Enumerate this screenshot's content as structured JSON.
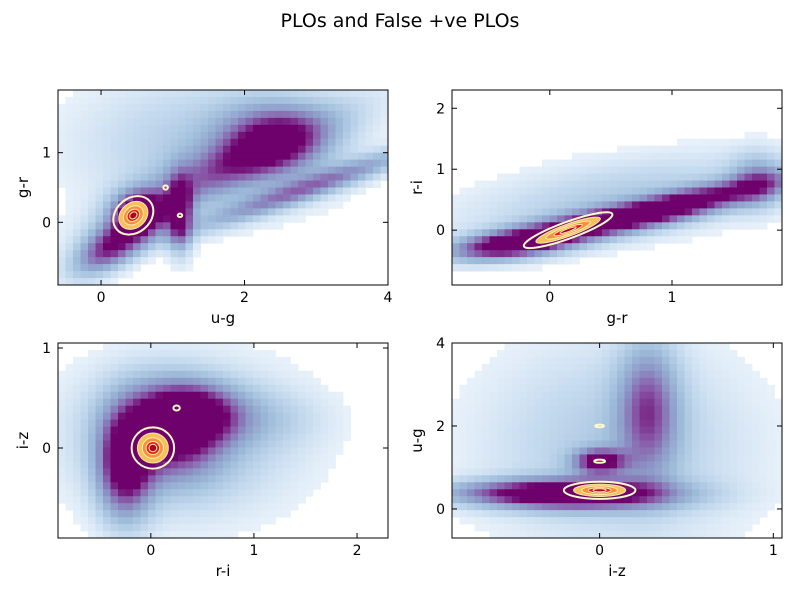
{
  "figure": {
    "title": "PLOs and False +ve PLOs"
  },
  "chart_data": [
    {
      "type": "heatmap",
      "xlabel": "u-g",
      "ylabel": "g-r",
      "xlim": [
        -0.6,
        4.0
      ],
      "ylim": [
        -0.9,
        1.9
      ],
      "xticks": [
        "0",
        "2",
        "4"
      ],
      "xtick_values": [
        0,
        2,
        4
      ],
      "yticks": [
        "0",
        "1"
      ],
      "ytick_values": [
        0,
        1
      ],
      "background_blobs": [
        {
          "cx": 0.2,
          "cy": -0.3,
          "rx": 0.45,
          "ry": 0.2,
          "rot": 35,
          "level": 0.95
        },
        {
          "cx": 0.55,
          "cy": 0.15,
          "rx": 0.25,
          "ry": 0.2,
          "level": 0.9
        },
        {
          "cx": 1.1,
          "cy": 0.1,
          "rx": 0.12,
          "ry": 0.35,
          "level": 0.85
        },
        {
          "cx": 1.8,
          "cy": 0.8,
          "rx": 1.2,
          "ry": 0.25,
          "rot": 25,
          "level": 0.55
        },
        {
          "cx": 2.4,
          "cy": 1.2,
          "rx": 0.5,
          "ry": 0.35,
          "level": 0.7
        },
        {
          "cx": 2.9,
          "cy": 0.5,
          "rx": 1.2,
          "ry": 0.12,
          "rot": 20,
          "level": 0.6
        },
        {
          "cx": 1.5,
          "cy": 1.1,
          "rx": 1.3,
          "ry": 0.7,
          "level": 0.3
        }
      ],
      "foreground_blobs": [
        {
          "cx": 0.45,
          "cy": 0.1,
          "rx": 0.22,
          "ry": 0.18,
          "rot": 40,
          "level": 1.0
        },
        {
          "cx": 0.9,
          "cy": 0.5,
          "rx": 0.05,
          "ry": 0.05,
          "level": 0.4
        },
        {
          "cx": 1.1,
          "cy": 0.1,
          "rx": 0.05,
          "ry": 0.04,
          "level": 0.35
        }
      ]
    },
    {
      "type": "heatmap",
      "xlabel": "g-r",
      "ylabel": "r-i",
      "xlim": [
        -0.8,
        1.9
      ],
      "ylim": [
        -0.9,
        2.3
      ],
      "xticks": [
        "0",
        "1"
      ],
      "xtick_values": [
        0,
        1
      ],
      "yticks": [
        "0",
        "1",
        "2"
      ],
      "ytick_values": [
        0,
        1,
        2
      ],
      "background_blobs": [
        {
          "cx": -0.3,
          "cy": -0.25,
          "rx": 0.35,
          "ry": 0.15,
          "rot": 15,
          "level": 0.95
        },
        {
          "cx": 0.4,
          "cy": 0.1,
          "rx": 0.6,
          "ry": 0.15,
          "rot": 20,
          "level": 0.85
        },
        {
          "cx": 1.2,
          "cy": 0.5,
          "rx": 0.6,
          "ry": 0.14,
          "rot": 25,
          "level": 0.75
        },
        {
          "cx": 0.6,
          "cy": 0.5,
          "rx": 1.0,
          "ry": 0.45,
          "rot": 20,
          "level": 0.3
        },
        {
          "cx": 1.7,
          "cy": 0.8,
          "rx": 0.15,
          "ry": 0.3,
          "level": 0.45
        }
      ],
      "foreground_blobs": [
        {
          "cx": 0.15,
          "cy": 0.0,
          "rx": 0.28,
          "ry": 0.1,
          "rot": 20,
          "level": 1.0
        }
      ]
    },
    {
      "type": "heatmap",
      "xlabel": "r-i",
      "ylabel": "i-z",
      "xlim": [
        -0.9,
        2.3
      ],
      "ylim": [
        -0.9,
        1.05
      ],
      "xticks": [
        "0",
        "1",
        "2"
      ],
      "xtick_values": [
        0,
        1,
        2
      ],
      "yticks": [
        "0",
        "1"
      ],
      "ytick_values": [
        0,
        1
      ],
      "background_blobs": [
        {
          "cx": -0.25,
          "cy": -0.2,
          "rx": 0.18,
          "ry": 0.35,
          "level": 0.95
        },
        {
          "cx": 0.15,
          "cy": 0.15,
          "rx": 0.35,
          "ry": 0.3,
          "rot": -30,
          "level": 0.8
        },
        {
          "cx": 0.4,
          "cy": 0.35,
          "rx": 0.3,
          "ry": 0.2,
          "level": 0.75
        },
        {
          "cx": 0.3,
          "cy": 0.1,
          "rx": 0.8,
          "ry": 0.55,
          "level": 0.35
        },
        {
          "cx": 0.9,
          "cy": 0.3,
          "rx": 0.5,
          "ry": 0.2,
          "level": 0.2
        }
      ],
      "foreground_blobs": [
        {
          "cx": 0.02,
          "cy": 0.0,
          "rx": 0.15,
          "ry": 0.15,
          "level": 1.0
        },
        {
          "cx": 0.25,
          "cy": 0.4,
          "rx": 0.05,
          "ry": 0.04,
          "level": 0.4
        }
      ]
    },
    {
      "type": "heatmap",
      "xlabel": "i-z",
      "ylabel": "u-g",
      "xlim": [
        -0.85,
        1.05
      ],
      "ylim": [
        -0.7,
        4.0
      ],
      "xticks": [
        "0",
        "1"
      ],
      "xtick_values": [
        0,
        1
      ],
      "yticks": [
        "0",
        "2",
        "4"
      ],
      "ytick_values": [
        0,
        2,
        4
      ],
      "background_blobs": [
        {
          "cx": -0.15,
          "cy": 0.35,
          "rx": 0.4,
          "ry": 0.25,
          "level": 0.95
        },
        {
          "cx": 0.0,
          "cy": 1.15,
          "rx": 0.1,
          "ry": 0.2,
          "level": 0.9
        },
        {
          "cx": 0.28,
          "cy": 2.4,
          "rx": 0.12,
          "ry": 1.1,
          "level": 0.65
        },
        {
          "cx": 0.1,
          "cy": 1.5,
          "rx": 0.55,
          "ry": 1.8,
          "level": 0.3
        },
        {
          "cx": -0.4,
          "cy": 0.4,
          "rx": 0.4,
          "ry": 0.2,
          "level": 0.35
        }
      ],
      "foreground_blobs": [
        {
          "cx": 0.0,
          "cy": 0.45,
          "rx": 0.15,
          "ry": 0.15,
          "level": 1.0
        },
        {
          "cx": 0.0,
          "cy": 1.15,
          "rx": 0.05,
          "ry": 0.06,
          "level": 0.35
        },
        {
          "cx": 0.0,
          "cy": 2.0,
          "rx": 0.04,
          "ry": 0.05,
          "level": 0.3
        }
      ]
    }
  ]
}
